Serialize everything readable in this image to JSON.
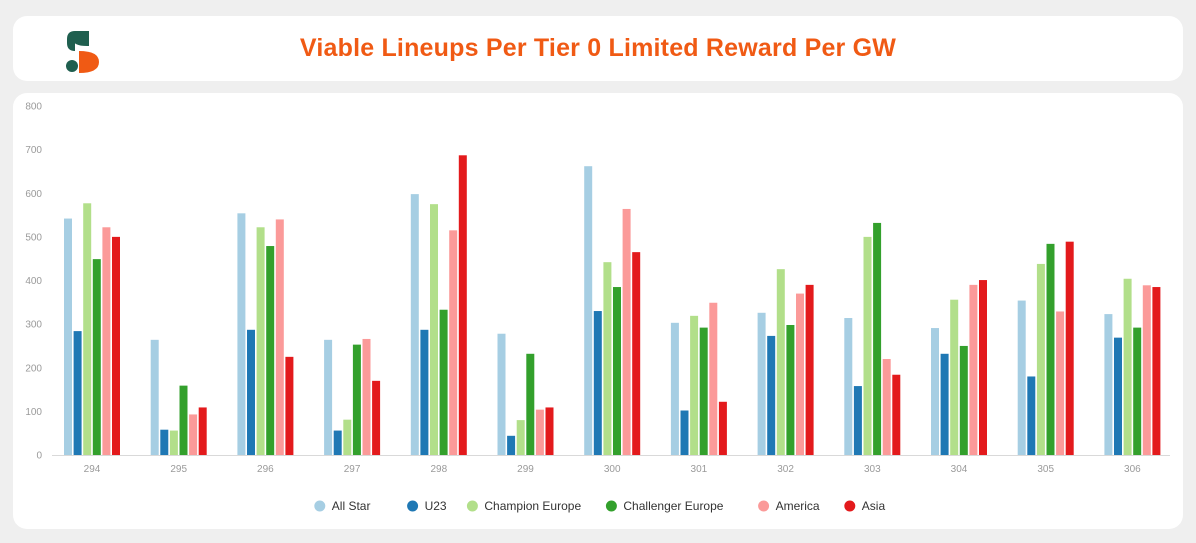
{
  "header": {
    "title": "Viable Lineups Per Tier 0 Limited Reward Per GW",
    "logo_icon": "sorare-logo-icon"
  },
  "colors": {
    "title": "#f05a14",
    "logo_top": "#1f5f4f",
    "logo_bottom": "#f05a14"
  },
  "chart_data": {
    "type": "bar",
    "title": "Viable Lineups Per Tier 0 Limited Reward Per GW",
    "xlabel": "",
    "ylabel": "",
    "ylim": [
      0,
      800
    ],
    "yticks": [
      0,
      100,
      200,
      300,
      400,
      500,
      600,
      700,
      800
    ],
    "grid": false,
    "legend_position": "bottom",
    "categories": [
      "294",
      "295",
      "296",
      "297",
      "298",
      "299",
      "300",
      "301",
      "302",
      "303",
      "304",
      "305",
      "306"
    ],
    "series": [
      {
        "name": "All Star",
        "color": "#a6cee3",
        "values": [
          542,
          264,
          554,
          264,
          598,
          278,
          662,
          303,
          326,
          314,
          291,
          354,
          323
        ]
      },
      {
        "name": "U23",
        "color": "#1f78b4",
        "values": [
          284,
          58,
          287,
          56,
          287,
          44,
          330,
          102,
          273,
          158,
          232,
          180,
          269
        ]
      },
      {
        "name": "Champion Europe",
        "color": "#b2df8a",
        "values": [
          577,
          56,
          522,
          81,
          575,
          80,
          442,
          319,
          426,
          500,
          356,
          438,
          404
        ]
      },
      {
        "name": "Challenger Europe",
        "color": "#33a02c",
        "values": [
          449,
          159,
          479,
          253,
          333,
          232,
          385,
          292,
          298,
          532,
          250,
          484,
          292
        ]
      },
      {
        "name": "America",
        "color": "#fb9a99",
        "values": [
          522,
          93,
          540,
          266,
          515,
          104,
          564,
          349,
          370,
          220,
          390,
          329,
          389
        ]
      },
      {
        "name": "Asia",
        "color": "#e31a1c",
        "values": [
          500,
          109,
          225,
          170,
          687,
          109,
          465,
          122,
          390,
          184,
          401,
          489,
          385
        ]
      }
    ]
  }
}
